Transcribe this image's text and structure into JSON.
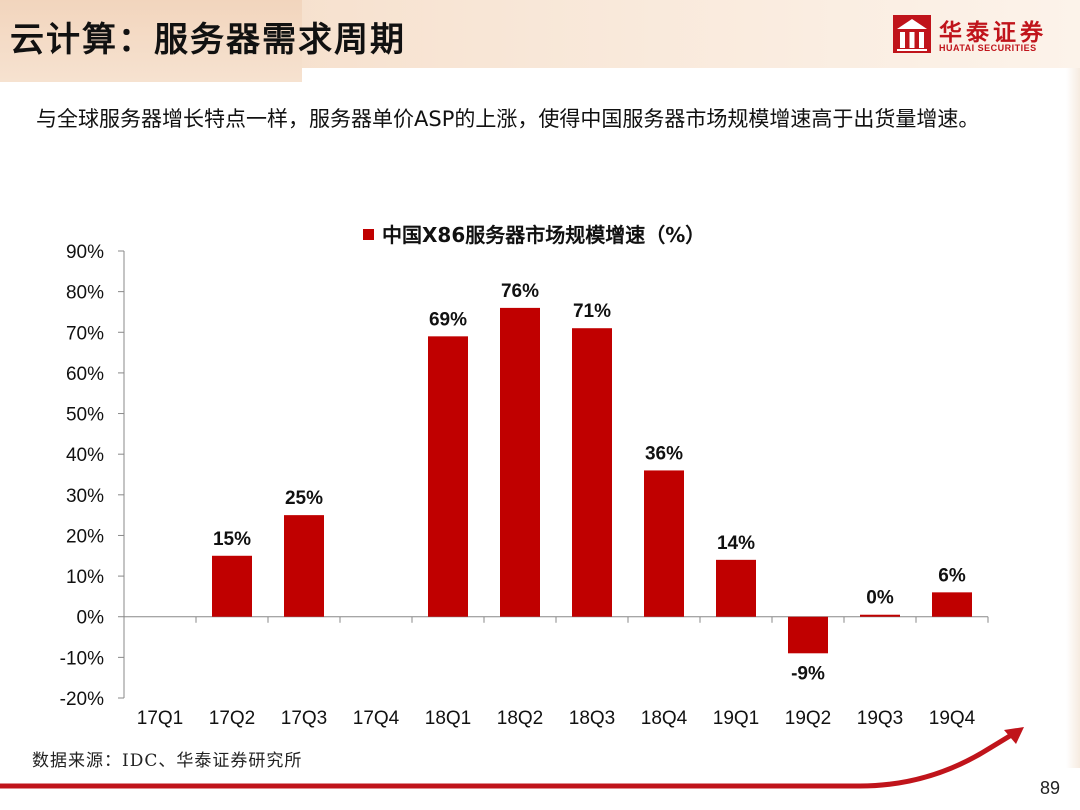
{
  "header": {
    "title": "云计算：服务器需求周期",
    "logo": {
      "name_cn": "华泰证券",
      "name_en": "HUATAI SECURITIES",
      "icon": "huatai-logo-icon"
    }
  },
  "description": "与全球服务器增长特点一样，服务器单价ASP的上涨，使得中国服务器市场规模增速高于出货量增速。",
  "chart_data": {
    "type": "bar",
    "legend": "中国X86服务器市场规模增速（%）",
    "legend_position": "top",
    "categories": [
      "17Q1",
      "17Q2",
      "17Q3",
      "17Q4",
      "18Q1",
      "18Q2",
      "18Q3",
      "18Q4",
      "19Q1",
      "19Q2",
      "19Q3",
      "19Q4"
    ],
    "series": [
      {
        "name": "中国X86服务器市场规模增速（%）",
        "values": [
          null,
          15,
          25,
          null,
          69,
          76,
          71,
          36,
          14,
          -9,
          0,
          6
        ],
        "labels": [
          "",
          "15%",
          "25%",
          "",
          "69%",
          "76%",
          "71%",
          "36%",
          "14%",
          "-9%",
          "0%",
          "6%"
        ]
      }
    ],
    "ylim": [
      -20,
      90
    ],
    "yticks": [
      -20,
      -10,
      0,
      10,
      20,
      30,
      40,
      50,
      60,
      70,
      80,
      90
    ],
    "ytick_labels": [
      "-20%",
      "-10%",
      "0%",
      "10%",
      "20%",
      "30%",
      "40%",
      "50%",
      "60%",
      "70%",
      "80%",
      "90%"
    ],
    "grid": false,
    "color": "#c00000"
  },
  "source": "数据来源：IDC、华泰证券研究所",
  "page_number": "89",
  "colors": {
    "accent": "#c0141b",
    "bar": "#c00000",
    "header_band": "#f4d9c2"
  }
}
